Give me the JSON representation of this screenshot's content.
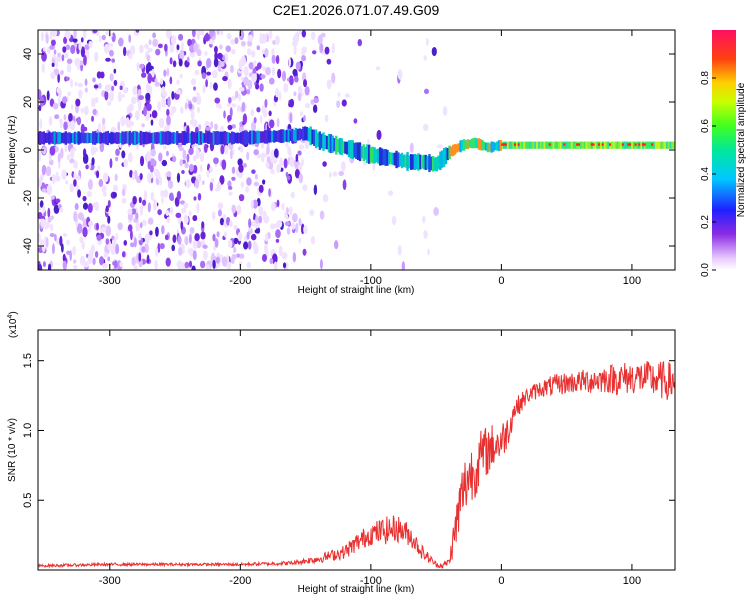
{
  "title": "C2E1.2026.071.07.49.G09",
  "chart_data": [
    {
      "type": "heatmap",
      "xlabel": "Height of straight line (km)",
      "ylabel": "Frequency (Hz)",
      "xlim": [
        -355,
        133
      ],
      "ylim": [
        -50,
        50
      ],
      "xticks": [
        -300,
        -200,
        -100,
        0,
        100
      ],
      "xtick_labels": [
        "-300",
        "-200",
        "-100",
        "0",
        "100"
      ],
      "yticks": [
        -40,
        -20,
        0,
        20,
        40
      ],
      "ytick_labels": [
        "-40",
        "-20",
        "0",
        "20",
        "40"
      ],
      "ridge": {
        "x": [
          -355,
          -300,
          -250,
          -200,
          -160,
          -150,
          -140,
          -120,
          -100,
          -80,
          -70,
          -60,
          -50,
          -40,
          -30,
          -20,
          -10,
          0,
          20,
          60,
          100,
          133
        ],
        "y": [
          5,
          5,
          5,
          5,
          6,
          7,
          4,
          1,
          -2,
          -4,
          -5,
          -5,
          -6,
          -1,
          2,
          3,
          1,
          2,
          2,
          2,
          2,
          2
        ]
      },
      "colorbar": {
        "label": "Normalized spectral amplitude",
        "range": [
          0,
          1
        ],
        "ticks": [
          0.0,
          0.2,
          0.4,
          0.6,
          0.8
        ],
        "tick_labels": [
          "0.0",
          "0.2",
          "0.4",
          "0.6",
          "0.8"
        ]
      }
    },
    {
      "type": "line",
      "xlabel": "Height of straight line (km)",
      "ylabel": "SNR (10 * v/v)",
      "y_multiplier": "(x10",
      "y_multiplier_exp": "4",
      "y_multiplier_close": ")",
      "xlim": [
        -355,
        133
      ],
      "ylim": [
        0,
        1.72
      ],
      "xticks": [
        -300,
        -200,
        -100,
        0,
        100
      ],
      "xtick_labels": [
        "-300",
        "-200",
        "-100",
        "0",
        "100"
      ],
      "yticks": [
        0.5,
        1.0,
        1.5
      ],
      "ytick_labels": [
        "0.5",
        "1.0",
        "1.5"
      ],
      "series": [
        {
          "name": "SNR",
          "color": "#e83030",
          "x": [
            -355,
            -300,
            -250,
            -200,
            -160,
            -140,
            -120,
            -110,
            -100,
            -90,
            -80,
            -70,
            -60,
            -50,
            -45,
            -40,
            -35,
            -30,
            -25,
            -20,
            -15,
            -10,
            -5,
            0,
            5,
            10,
            20,
            30,
            40,
            50,
            60,
            70,
            80,
            90,
            100,
            110,
            120,
            133
          ],
          "y": [
            0.03,
            0.04,
            0.04,
            0.04,
            0.05,
            0.08,
            0.13,
            0.2,
            0.26,
            0.28,
            0.3,
            0.25,
            0.12,
            0.04,
            0.03,
            0.06,
            0.3,
            0.55,
            0.68,
            0.72,
            0.82,
            0.86,
            0.9,
            0.92,
            1.0,
            1.15,
            1.25,
            1.3,
            1.32,
            1.34,
            1.35,
            1.36,
            1.37,
            1.37,
            1.38,
            1.38,
            1.36,
            1.35
          ],
          "noise": [
            0.01,
            0.01,
            0.01,
            0.01,
            0.015,
            0.03,
            0.05,
            0.07,
            0.08,
            0.1,
            0.1,
            0.08,
            0.05,
            0.02,
            0.02,
            0.03,
            0.18,
            0.22,
            0.22,
            0.2,
            0.2,
            0.18,
            0.16,
            0.14,
            0.12,
            0.08,
            0.06,
            0.06,
            0.08,
            0.08,
            0.08,
            0.1,
            0.1,
            0.12,
            0.12,
            0.12,
            0.14,
            0.14
          ]
        }
      ]
    }
  ]
}
